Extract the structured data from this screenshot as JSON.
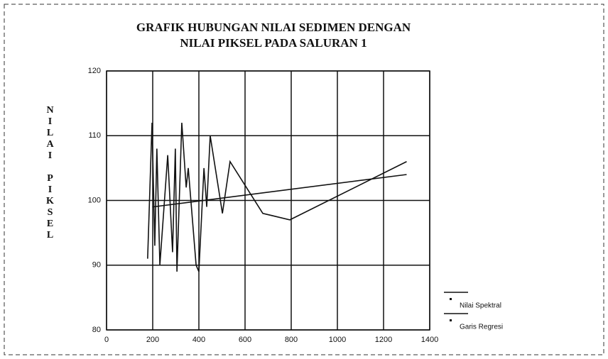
{
  "chart_data": {
    "type": "line",
    "title": [
      "GRAFIK HUBUNGAN NILAI SEDIMEN DENGAN",
      "NILAI PIKSEL PADA SALURAN 1"
    ],
    "ylabel": "NILAI PIKSEL",
    "xlim": [
      0,
      1400
    ],
    "xticks": [
      0,
      200,
      400,
      600,
      800,
      1000,
      1200,
      1400
    ],
    "ylim": [
      80,
      120
    ],
    "yticks": [
      80,
      90,
      100,
      110,
      120
    ],
    "grid": true,
    "legend": "lower right",
    "series": [
      {
        "name": "Nilai Spektral",
        "color": "#111111",
        "x": [
          178,
          197,
          209,
          218,
          231,
          265,
          286,
          298,
          305,
          326,
          345,
          354,
          388,
          400,
          422,
          434,
          449,
          502,
          535,
          677,
          794,
          1300
        ],
        "values": [
          91,
          112,
          93,
          108,
          90,
          107,
          92,
          108,
          89,
          112,
          102,
          105,
          90,
          89,
          105,
          99,
          110,
          98,
          106,
          98,
          97,
          106
        ]
      },
      {
        "name": "Garis Regresi",
        "color": "#111111",
        "x": [
          200,
          1300
        ],
        "values": [
          99,
          104
        ]
      }
    ]
  }
}
